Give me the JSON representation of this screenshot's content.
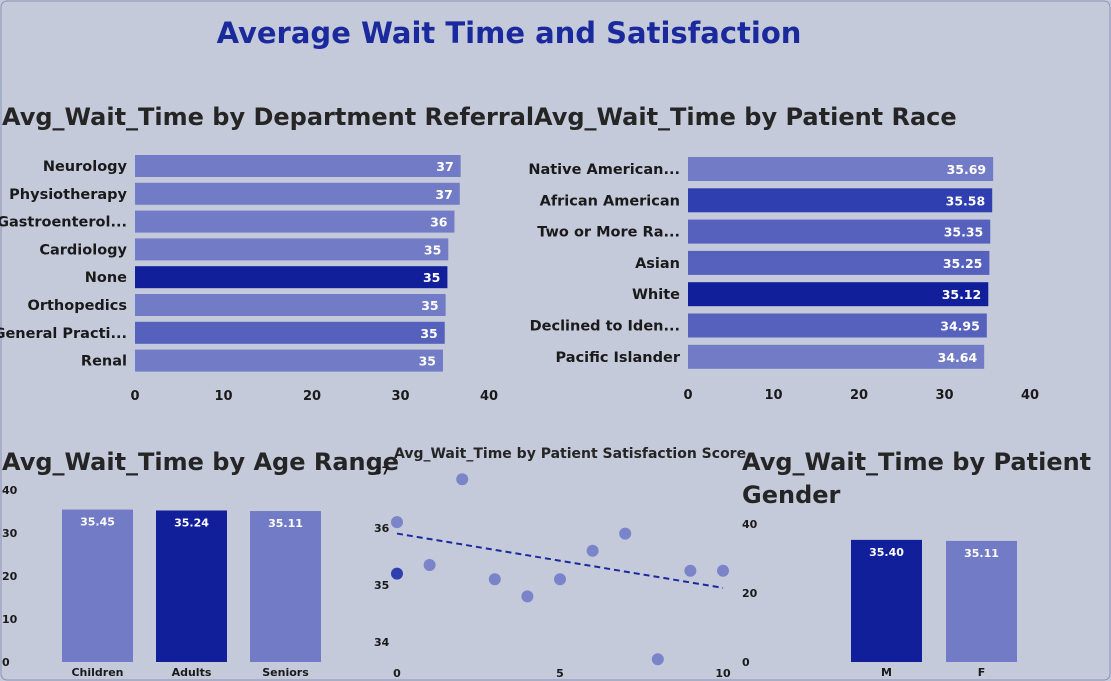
{
  "dashboard": {
    "title": "Average Wait Time and Satisfaction"
  },
  "colors": {
    "background": "#c5cadb",
    "title": "#1a2a9c",
    "heading": "#252525",
    "dark": "#121f9b",
    "medium": "#2f3fb0",
    "mid2": "#5561bd",
    "light": "#727cc6",
    "trend": "#1a2a9c",
    "dot": "#7a84c9"
  },
  "chart_data": [
    {
      "id": "dept",
      "type": "bar",
      "orientation": "horizontal",
      "title": "Avg_Wait_Time by Department Referral",
      "categories": [
        "Neurology",
        "Physiotherapy",
        "Gastroenterol...",
        "Cardiology",
        "None",
        "Orthopedics",
        "General Practi...",
        "Renal"
      ],
      "values": [
        36.8,
        36.7,
        36.1,
        35.4,
        35.3,
        35.1,
        35.0,
        34.8
      ],
      "labels": [
        "37",
        "37",
        "36",
        "35",
        "35",
        "35",
        "35",
        "35"
      ],
      "xlim": [
        0,
        40
      ],
      "ticks": [
        "0",
        "10",
        "20",
        "30",
        "40"
      ]
    },
    {
      "id": "race",
      "type": "bar",
      "orientation": "horizontal",
      "title": "Avg_Wait_Time by Patient Race",
      "categories": [
        "Native American...",
        "African American",
        "Two or More Ra...",
        "Asian",
        "White",
        "Declined to Iden...",
        "Pacific Islander"
      ],
      "values": [
        35.69,
        35.58,
        35.35,
        35.25,
        35.12,
        34.95,
        34.64
      ],
      "labels": [
        "35.69",
        "35.58",
        "35.35",
        "35.25",
        "35.12",
        "34.95",
        "34.64"
      ],
      "xlim": [
        0,
        40
      ],
      "ticks": [
        "0",
        "10",
        "20",
        "30",
        "40"
      ]
    },
    {
      "id": "age",
      "type": "bar",
      "orientation": "vertical",
      "title": "Avg_Wait_Time by Age Range",
      "categories": [
        "Children",
        "Adults",
        "Seniors"
      ],
      "values": [
        35.45,
        35.24,
        35.11
      ],
      "labels": [
        "35.45",
        "35.24",
        "35.11"
      ],
      "ylim": [
        0,
        40
      ],
      "ticks": [
        "0",
        "10",
        "20",
        "30",
        "40"
      ]
    },
    {
      "id": "sat",
      "type": "scatter",
      "title": "Avg_Wait_Time by Patient Satisfaction Score",
      "x": [
        0,
        0,
        1,
        2,
        3,
        4,
        5,
        6,
        7,
        8,
        9,
        10
      ],
      "y": [
        36.1,
        35.2,
        35.35,
        36.85,
        35.1,
        34.8,
        35.1,
        35.6,
        35.9,
        33.7,
        35.25,
        35.25
      ],
      "trend": {
        "start": [
          0,
          35.9
        ],
        "end": [
          10,
          34.95
        ]
      },
      "xlim": [
        0,
        10
      ],
      "ylim": [
        33.6,
        37.1
      ],
      "xticks": [
        "0",
        "5",
        "10"
      ],
      "yticks": [
        "34",
        "35",
        "36",
        "37"
      ]
    },
    {
      "id": "gender",
      "type": "bar",
      "orientation": "vertical",
      "title": "Avg_Wait_Time by Patient Gender",
      "title_lines": [
        "Avg_Wait_Time by Patient",
        "Gender"
      ],
      "categories": [
        "M",
        "F"
      ],
      "values": [
        35.4,
        35.11
      ],
      "labels": [
        "35.40",
        "35.11"
      ],
      "ylim": [
        0,
        40
      ],
      "ticks": [
        "0",
        "20",
        "40"
      ]
    }
  ]
}
